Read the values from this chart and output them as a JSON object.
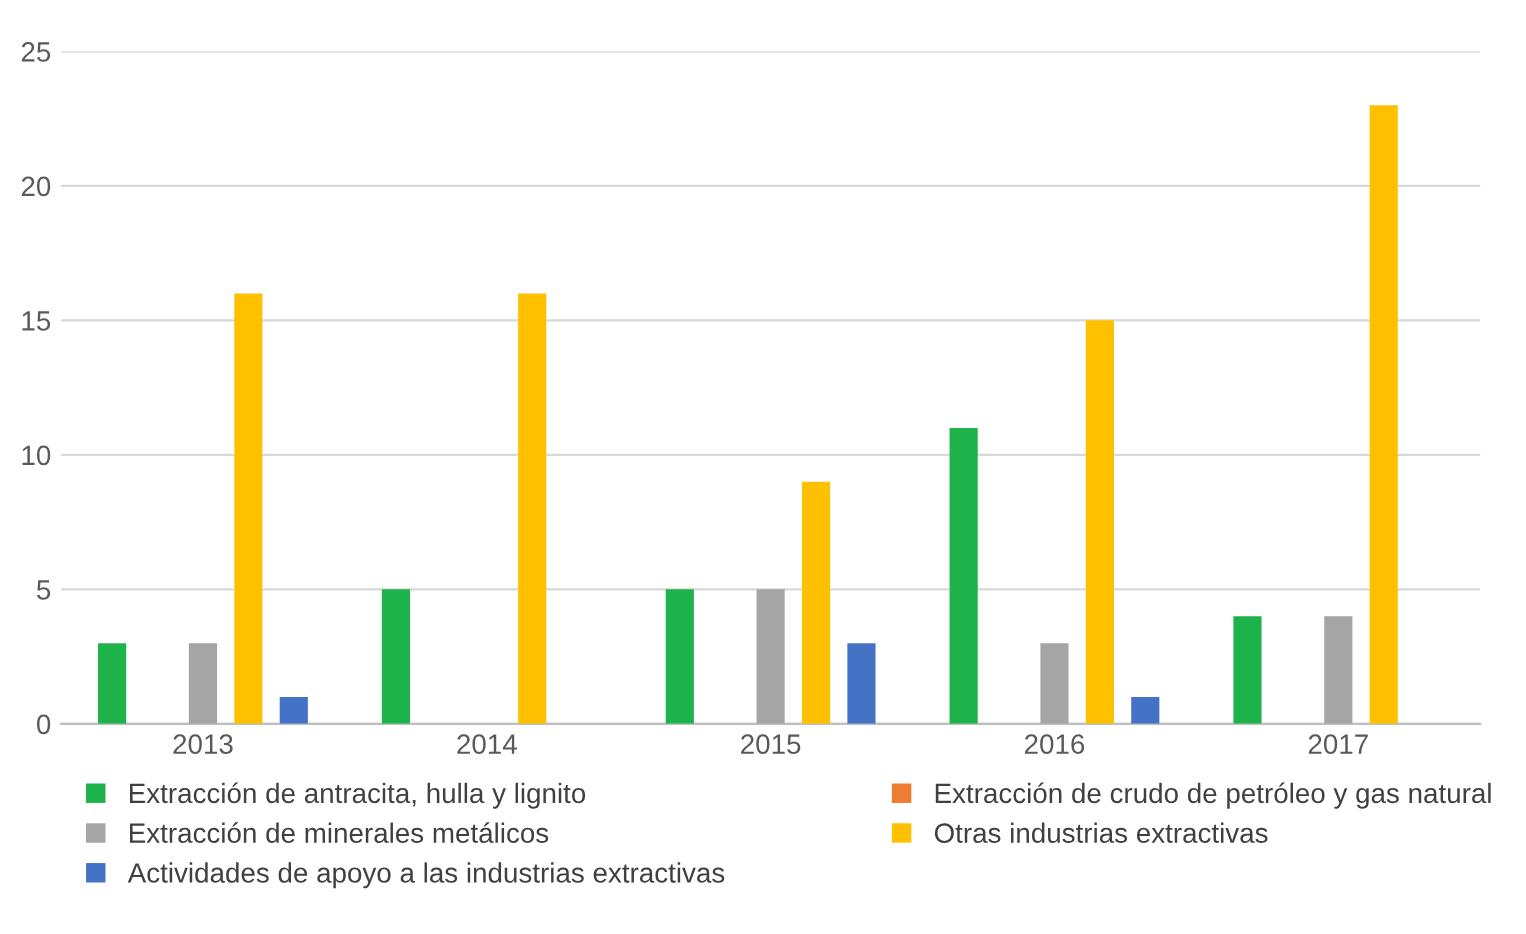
{
  "chart_data": {
    "type": "bar",
    "categories": [
      "2013",
      "2014",
      "2015",
      "2016",
      "2017"
    ],
    "series": [
      {
        "name": "Extracción de antracita, hulla y lignito",
        "color": "#1db34a",
        "values": [
          3,
          5,
          5,
          11,
          4
        ]
      },
      {
        "name": "Extracción de crudo de petróleo y gas natural",
        "color": "#ed7d31",
        "values": [
          0,
          0,
          0,
          0,
          0
        ]
      },
      {
        "name": "Extracción de minerales metálicos",
        "color": "#a5a5a5",
        "values": [
          3,
          0,
          5,
          3,
          4
        ]
      },
      {
        "name": "Otras industrias extractivas",
        "color": "#ffc000",
        "values": [
          16,
          16,
          9,
          15,
          23
        ]
      },
      {
        "name": "Actividades de apoyo a las industrias extractivas",
        "color": "#4472c4",
        "values": [
          1,
          0,
          3,
          1,
          0
        ]
      }
    ],
    "ylim": [
      0,
      25
    ],
    "yticks": [
      0,
      5,
      10,
      15,
      20,
      25
    ],
    "grid": "y",
    "legend": "bottom"
  }
}
